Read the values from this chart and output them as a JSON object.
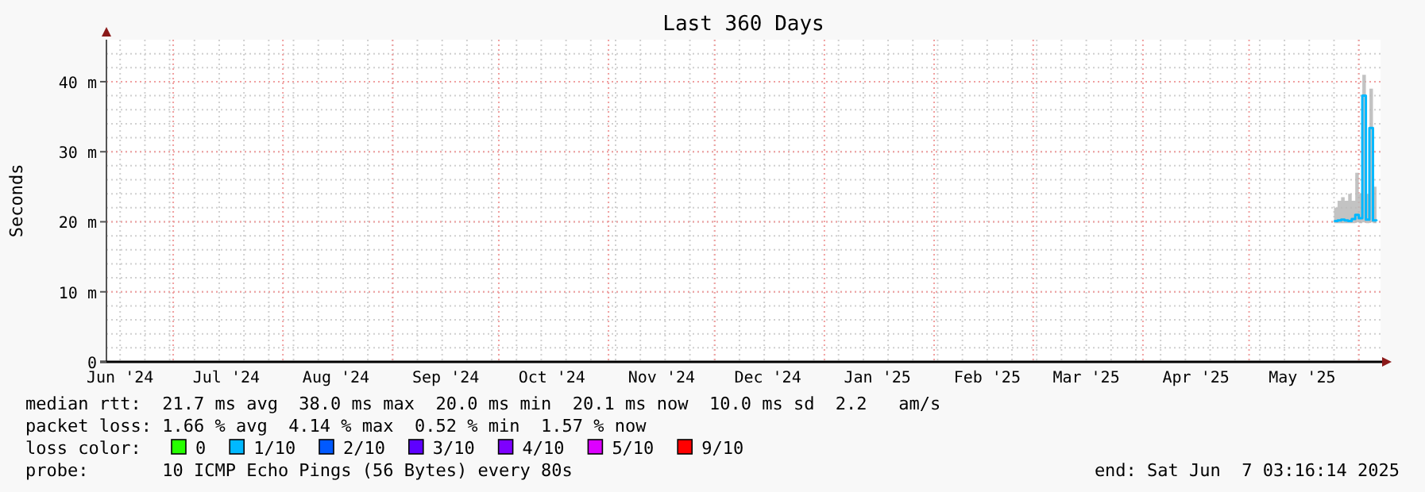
{
  "chart_data": {
    "type": "step",
    "title": "Last 360 Days",
    "ylabel": "Seconds",
    "x": [
      "2025-05-25",
      "2025-05-26",
      "2025-05-27",
      "2025-05-28",
      "2025-05-29",
      "2025-05-30",
      "2025-05-31",
      "2025-06-01",
      "2025-06-02",
      "2025-06-03",
      "2025-06-04",
      "2025-06-05",
      "2025-06-06"
    ],
    "xlim": [
      "2024-06-12T03:16",
      "2025-06-07T03:16"
    ],
    "xticks": [
      {
        "value": "2024-06-16",
        "label": "Jun '24"
      },
      {
        "value": "2024-07-16",
        "label": "Jul '24"
      },
      {
        "value": "2024-08-16",
        "label": "Aug '24"
      },
      {
        "value": "2024-09-16",
        "label": "Sep '24"
      },
      {
        "value": "2024-10-16",
        "label": "Oct '24"
      },
      {
        "value": "2024-11-16",
        "label": "Nov '24"
      },
      {
        "value": "2024-12-16",
        "label": "Dec '24"
      },
      {
        "value": "2025-01-16",
        "label": "Jan '25"
      },
      {
        "value": "2025-02-16",
        "label": "Feb '25"
      },
      {
        "value": "2025-03-16",
        "label": "Mar '25"
      },
      {
        "value": "2025-04-16",
        "label": "Apr '25"
      },
      {
        "value": "2025-05-16",
        "label": "May '25"
      }
    ],
    "ylim": [
      0,
      46
    ],
    "yticks": [
      {
        "value": 0,
        "label": "0"
      },
      {
        "value": 10,
        "label": "10 m"
      },
      {
        "value": 20,
        "label": "20 m"
      },
      {
        "value": 30,
        "label": "30 m"
      },
      {
        "value": 40,
        "label": "40 m"
      }
    ],
    "grid": true,
    "legend": "bottom",
    "legend_title": "loss color:",
    "series": [
      {
        "name": "0",
        "color": "#26ff00",
        "values": [
          null,
          null,
          null,
          null,
          null,
          null,
          null,
          null,
          null,
          null,
          null,
          null,
          null
        ]
      },
      {
        "name": "1/10",
        "color": "#00b8ff",
        "values": [
          20.1,
          20.2,
          20.3,
          20.2,
          20.1,
          20.4,
          21,
          20.5,
          38,
          20.3,
          33.4,
          20.2,
          20.1
        ],
        "lower": [
          19.8,
          19.8,
          19.8,
          19.8,
          19.8,
          19.8,
          19.9,
          19.8,
          19.9,
          19.8,
          19.9,
          19.8,
          19.8
        ],
        "upper": [
          22,
          23,
          23.5,
          23,
          24,
          23,
          27,
          24,
          41,
          24,
          39,
          25,
          25
        ]
      },
      {
        "name": "2/10",
        "color": "#0059ff",
        "values": [
          null,
          null,
          null,
          null,
          null,
          null,
          null,
          null,
          null,
          null,
          null,
          null,
          null
        ]
      },
      {
        "name": "3/10",
        "color": "#5e00ff",
        "values": [
          null,
          null,
          null,
          null,
          null,
          null,
          null,
          null,
          null,
          null,
          null,
          null,
          null
        ]
      },
      {
        "name": "4/10",
        "color": "#7e00ff",
        "values": [
          null,
          null,
          null,
          null,
          null,
          null,
          null,
          null,
          null,
          null,
          null,
          null,
          null
        ]
      },
      {
        "name": "5/10",
        "color": "#dd00ff",
        "values": [
          null,
          null,
          null,
          null,
          null,
          null,
          null,
          null,
          null,
          null,
          null,
          null,
          null
        ]
      },
      {
        "name": "9/10",
        "color": "#ff0000",
        "values": [
          null,
          null,
          null,
          null,
          null,
          null,
          null,
          null,
          null,
          null,
          null,
          null,
          null
        ]
      }
    ],
    "annotations": [
      "median rtt:  21.7 ms avg  38.0 ms max  20.0 ms min  20.1 ms now  10.0 ms sd  2.2   am/s",
      "packet loss: 1.66 % avg  4.14 % max  0.52 % min  1.57 % now",
      "probe:       10 ICMP Echo Pings (56 Bytes) every 80s",
      "end: Sat Jun  7 03:16:14 2025"
    ]
  }
}
